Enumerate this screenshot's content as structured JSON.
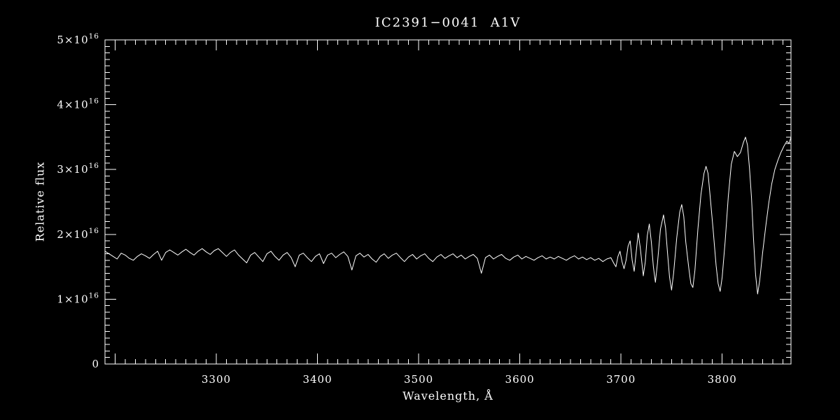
{
  "colors": {
    "background": "#000000",
    "foreground": "#ffffff"
  },
  "chart_data": {
    "type": "line",
    "title": "IC2391−0041  A1V",
    "xlabel": "Wavelength, Å",
    "ylabel": "Relative flux",
    "flux_scale": "axis values are in units of 10^16",
    "xlim": [
      3190,
      3868
    ],
    "ylim": [
      0,
      5
    ],
    "x_major_step": 100,
    "x_minor_step": 10,
    "y_major_step": 1,
    "y_minor_step": 0.1,
    "grid": false,
    "legend": "none",
    "x_ticks": [
      {
        "v": 3300,
        "label": "3300"
      },
      {
        "v": 3400,
        "label": "3400"
      },
      {
        "v": 3500,
        "label": "3500"
      },
      {
        "v": 3600,
        "label": "3600"
      },
      {
        "v": 3700,
        "label": "3700"
      },
      {
        "v": 3800,
        "label": "3800"
      }
    ],
    "y_ticks": [
      {
        "v": 0,
        "base": "0",
        "sup": ""
      },
      {
        "v": 1,
        "base": "1×10",
        "sup": "16"
      },
      {
        "v": 2,
        "base": "2×10",
        "sup": "16"
      },
      {
        "v": 3,
        "base": "3×10",
        "sup": "16"
      },
      {
        "v": 4,
        "base": "4×10",
        "sup": "16"
      },
      {
        "v": 5,
        "base": "5×10",
        "sup": "16"
      }
    ],
    "series": [
      {
        "name": "spectrum",
        "points": [
          [
            3190,
            1.74
          ],
          [
            3194,
            1.7
          ],
          [
            3198,
            1.66
          ],
          [
            3202,
            1.62
          ],
          [
            3206,
            1.71
          ],
          [
            3210,
            1.68
          ],
          [
            3214,
            1.63
          ],
          [
            3218,
            1.6
          ],
          [
            3222,
            1.66
          ],
          [
            3226,
            1.7
          ],
          [
            3230,
            1.67
          ],
          [
            3234,
            1.63
          ],
          [
            3238,
            1.69
          ],
          [
            3242,
            1.74
          ],
          [
            3246,
            1.6
          ],
          [
            3250,
            1.72
          ],
          [
            3254,
            1.76
          ],
          [
            3258,
            1.72
          ],
          [
            3262,
            1.68
          ],
          [
            3266,
            1.73
          ],
          [
            3270,
            1.77
          ],
          [
            3274,
            1.72
          ],
          [
            3278,
            1.68
          ],
          [
            3282,
            1.74
          ],
          [
            3286,
            1.78
          ],
          [
            3290,
            1.73
          ],
          [
            3294,
            1.69
          ],
          [
            3298,
            1.75
          ],
          [
            3302,
            1.78
          ],
          [
            3306,
            1.72
          ],
          [
            3310,
            1.66
          ],
          [
            3314,
            1.72
          ],
          [
            3318,
            1.76
          ],
          [
            3322,
            1.68
          ],
          [
            3326,
            1.62
          ],
          [
            3330,
            1.56
          ],
          [
            3334,
            1.68
          ],
          [
            3338,
            1.72
          ],
          [
            3342,
            1.65
          ],
          [
            3346,
            1.58
          ],
          [
            3350,
            1.7
          ],
          [
            3354,
            1.74
          ],
          [
            3358,
            1.66
          ],
          [
            3362,
            1.6
          ],
          [
            3366,
            1.68
          ],
          [
            3370,
            1.72
          ],
          [
            3374,
            1.64
          ],
          [
            3378,
            1.5
          ],
          [
            3382,
            1.68
          ],
          [
            3386,
            1.71
          ],
          [
            3390,
            1.64
          ],
          [
            3394,
            1.58
          ],
          [
            3398,
            1.66
          ],
          [
            3402,
            1.7
          ],
          [
            3406,
            1.55
          ],
          [
            3410,
            1.68
          ],
          [
            3414,
            1.71
          ],
          [
            3418,
            1.64
          ],
          [
            3422,
            1.69
          ],
          [
            3426,
            1.73
          ],
          [
            3430,
            1.66
          ],
          [
            3434,
            1.45
          ],
          [
            3438,
            1.67
          ],
          [
            3442,
            1.71
          ],
          [
            3446,
            1.65
          ],
          [
            3450,
            1.69
          ],
          [
            3454,
            1.62
          ],
          [
            3458,
            1.57
          ],
          [
            3462,
            1.66
          ],
          [
            3466,
            1.7
          ],
          [
            3470,
            1.63
          ],
          [
            3474,
            1.68
          ],
          [
            3478,
            1.71
          ],
          [
            3482,
            1.64
          ],
          [
            3486,
            1.58
          ],
          [
            3490,
            1.65
          ],
          [
            3494,
            1.69
          ],
          [
            3498,
            1.62
          ],
          [
            3502,
            1.67
          ],
          [
            3506,
            1.7
          ],
          [
            3510,
            1.63
          ],
          [
            3514,
            1.58
          ],
          [
            3518,
            1.65
          ],
          [
            3522,
            1.69
          ],
          [
            3526,
            1.63
          ],
          [
            3530,
            1.67
          ],
          [
            3534,
            1.7
          ],
          [
            3538,
            1.64
          ],
          [
            3542,
            1.68
          ],
          [
            3546,
            1.62
          ],
          [
            3550,
            1.66
          ],
          [
            3554,
            1.69
          ],
          [
            3558,
            1.63
          ],
          [
            3562,
            1.4
          ],
          [
            3566,
            1.64
          ],
          [
            3570,
            1.68
          ],
          [
            3574,
            1.62
          ],
          [
            3578,
            1.66
          ],
          [
            3582,
            1.69
          ],
          [
            3586,
            1.63
          ],
          [
            3590,
            1.6
          ],
          [
            3594,
            1.65
          ],
          [
            3598,
            1.68
          ],
          [
            3602,
            1.62
          ],
          [
            3606,
            1.66
          ],
          [
            3610,
            1.63
          ],
          [
            3614,
            1.6
          ],
          [
            3618,
            1.64
          ],
          [
            3622,
            1.67
          ],
          [
            3626,
            1.62
          ],
          [
            3630,
            1.65
          ],
          [
            3634,
            1.62
          ],
          [
            3638,
            1.66
          ],
          [
            3642,
            1.63
          ],
          [
            3646,
            1.6
          ],
          [
            3650,
            1.64
          ],
          [
            3654,
            1.67
          ],
          [
            3658,
            1.62
          ],
          [
            3662,
            1.65
          ],
          [
            3666,
            1.61
          ],
          [
            3670,
            1.64
          ],
          [
            3674,
            1.6
          ],
          [
            3678,
            1.63
          ],
          [
            3682,
            1.58
          ],
          [
            3686,
            1.62
          ],
          [
            3690,
            1.64
          ],
          [
            3693,
            1.55
          ],
          [
            3695,
            1.5
          ],
          [
            3697,
            1.66
          ],
          [
            3699,
            1.74
          ],
          [
            3701,
            1.58
          ],
          [
            3703,
            1.47
          ],
          [
            3705,
            1.6
          ],
          [
            3707,
            1.82
          ],
          [
            3709,
            1.9
          ],
          [
            3711,
            1.6
          ],
          [
            3713,
            1.43
          ],
          [
            3715,
            1.72
          ],
          [
            3717,
            2.02
          ],
          [
            3719,
            1.8
          ],
          [
            3722,
            1.36
          ],
          [
            3724,
            1.58
          ],
          [
            3726,
            1.98
          ],
          [
            3728,
            2.16
          ],
          [
            3730,
            1.88
          ],
          [
            3732,
            1.5
          ],
          [
            3734,
            1.26
          ],
          [
            3736,
            1.55
          ],
          [
            3739,
            2.08
          ],
          [
            3742,
            2.3
          ],
          [
            3744,
            2.1
          ],
          [
            3746,
            1.7
          ],
          [
            3748,
            1.34
          ],
          [
            3750,
            1.14
          ],
          [
            3752,
            1.4
          ],
          [
            3755,
            1.94
          ],
          [
            3758,
            2.34
          ],
          [
            3760,
            2.46
          ],
          [
            3762,
            2.28
          ],
          [
            3764,
            1.88
          ],
          [
            3767,
            1.48
          ],
          [
            3769,
            1.24
          ],
          [
            3771,
            1.18
          ],
          [
            3773,
            1.44
          ],
          [
            3776,
            2.08
          ],
          [
            3779,
            2.62
          ],
          [
            3782,
            2.94
          ],
          [
            3784,
            3.05
          ],
          [
            3786,
            2.94
          ],
          [
            3788,
            2.6
          ],
          [
            3791,
            2.08
          ],
          [
            3794,
            1.52
          ],
          [
            3796,
            1.24
          ],
          [
            3798,
            1.12
          ],
          [
            3800,
            1.34
          ],
          [
            3803,
            1.9
          ],
          [
            3806,
            2.58
          ],
          [
            3809,
            3.08
          ],
          [
            3812,
            3.28
          ],
          [
            3815,
            3.2
          ],
          [
            3818,
            3.26
          ],
          [
            3821,
            3.42
          ],
          [
            3823,
            3.5
          ],
          [
            3825,
            3.38
          ],
          [
            3827,
            3.02
          ],
          [
            3829,
            2.56
          ],
          [
            3831,
            1.92
          ],
          [
            3833,
            1.38
          ],
          [
            3835,
            1.08
          ],
          [
            3837,
            1.28
          ],
          [
            3840,
            1.72
          ],
          [
            3843,
            2.12
          ],
          [
            3846,
            2.48
          ],
          [
            3849,
            2.78
          ],
          [
            3852,
            3.0
          ],
          [
            3855,
            3.14
          ],
          [
            3858,
            3.26
          ],
          [
            3861,
            3.36
          ],
          [
            3864,
            3.44
          ],
          [
            3866,
            3.4
          ],
          [
            3868,
            3.5
          ]
        ]
      }
    ]
  }
}
